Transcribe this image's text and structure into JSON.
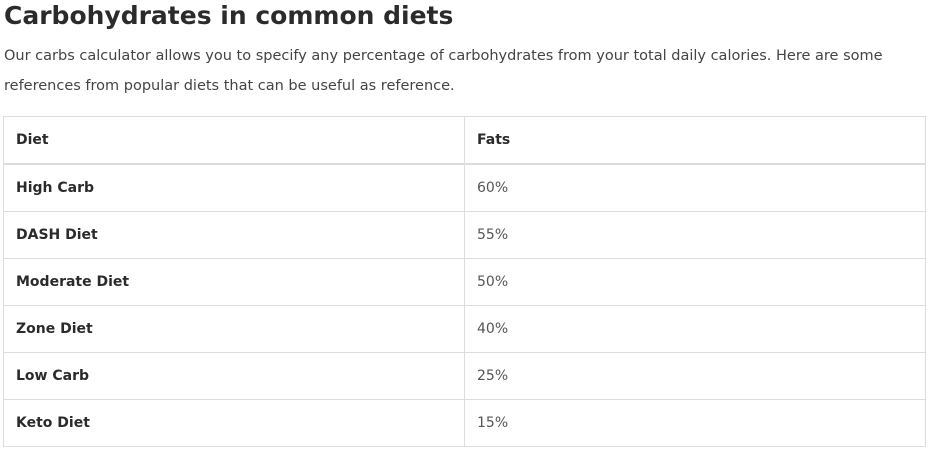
{
  "heading": "Carbohydrates in common diets",
  "intro": "Our carbs calculator allows you to specify any percentage of carbohydrates from your total daily calories. Here are some references from popular diets that can be useful as reference.",
  "table": {
    "headers": [
      "Diet",
      "Fats"
    ],
    "rows": [
      {
        "diet": "High Carb",
        "value": "60%"
      },
      {
        "diet": "DASH Diet",
        "value": "55%"
      },
      {
        "diet": "Moderate Diet",
        "value": "50%"
      },
      {
        "diet": "Zone Diet",
        "value": "40%"
      },
      {
        "diet": "Low Carb",
        "value": "25%"
      },
      {
        "diet": "Keto Diet",
        "value": "15%"
      }
    ]
  }
}
